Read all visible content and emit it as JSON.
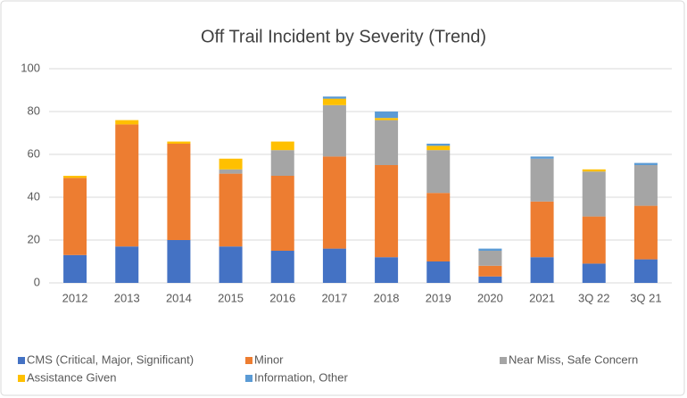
{
  "chart_data": {
    "type": "stacked_bar",
    "title": "Off Trail Incident by Severity (Trend)",
    "categories": [
      "2012",
      "2013",
      "2014",
      "2015",
      "2016",
      "2017",
      "2018",
      "2019",
      "2020",
      "2021",
      "3Q 22",
      "3Q 21"
    ],
    "series": [
      {
        "name": "CMS (Critical, Major, Significant)",
        "color": "#4472c4",
        "values": [
          13,
          17,
          20,
          17,
          15,
          16,
          12,
          10,
          3,
          12,
          9,
          11
        ]
      },
      {
        "name": "Minor",
        "color": "#ed7d31",
        "values": [
          36,
          57,
          45,
          34,
          35,
          43,
          43,
          32,
          5,
          26,
          22,
          25
        ]
      },
      {
        "name": "Near Miss, Safe Concern",
        "color": "#a5a5a5",
        "values": [
          0,
          0,
          0,
          2,
          12,
          24,
          21,
          20,
          7,
          20,
          21,
          19
        ]
      },
      {
        "name": "Assistance Given",
        "color": "#ffc000",
        "values": [
          1,
          2,
          1,
          5,
          4,
          3,
          1,
          2,
          0,
          0,
          1,
          0
        ]
      },
      {
        "name": "Information, Other",
        "color": "#5b9bd5",
        "values": [
          0,
          0,
          0,
          0,
          0,
          1,
          3,
          1,
          1,
          1,
          0,
          1
        ]
      }
    ],
    "ylim": [
      0,
      100
    ],
    "yticks": [
      0,
      20,
      40,
      60,
      80,
      100
    ],
    "grid": true,
    "legend": "bottom"
  }
}
